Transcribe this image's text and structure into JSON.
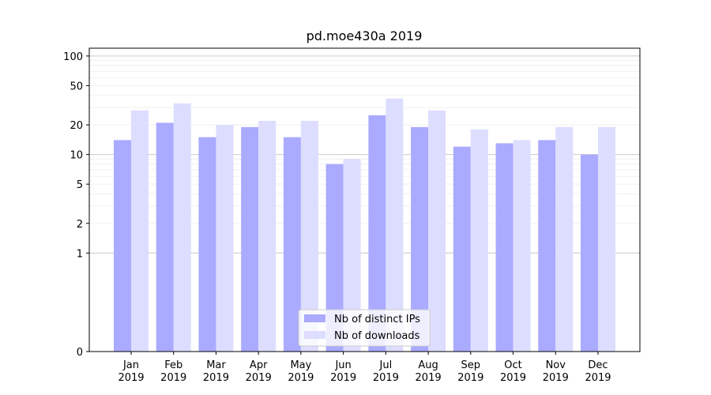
{
  "chart_data": {
    "type": "bar",
    "title": "pd.moe430a 2019",
    "xlabel": "",
    "ylabel": "",
    "yscale": "symlog",
    "ylim": [
      0,
      120
    ],
    "yticks": [
      0,
      1,
      2,
      5,
      10,
      20,
      50,
      100
    ],
    "ytick_labels": [
      "0",
      "1",
      "2",
      "5",
      "10",
      "20",
      "50",
      "100"
    ],
    "categories": [
      [
        "Jan",
        "2019"
      ],
      [
        "Feb",
        "2019"
      ],
      [
        "Mar",
        "2019"
      ],
      [
        "Apr",
        "2019"
      ],
      [
        "May",
        "2019"
      ],
      [
        "Jun",
        "2019"
      ],
      [
        "Jul",
        "2019"
      ],
      [
        "Aug",
        "2019"
      ],
      [
        "Sep",
        "2019"
      ],
      [
        "Oct",
        "2019"
      ],
      [
        "Nov",
        "2019"
      ],
      [
        "Dec",
        "2019"
      ]
    ],
    "series": [
      {
        "name": "Nb of distinct IPs",
        "color": "#aaaaff",
        "values": [
          14,
          21,
          15,
          19,
          15,
          8,
          25,
          19,
          12,
          13,
          14,
          10
        ]
      },
      {
        "name": "Nb of downloads",
        "color": "#ddddff",
        "values": [
          28,
          33,
          20,
          22,
          22,
          9,
          37,
          28,
          18,
          14,
          19,
          19
        ]
      }
    ],
    "grid": true,
    "legend_position": "bottom-center"
  }
}
